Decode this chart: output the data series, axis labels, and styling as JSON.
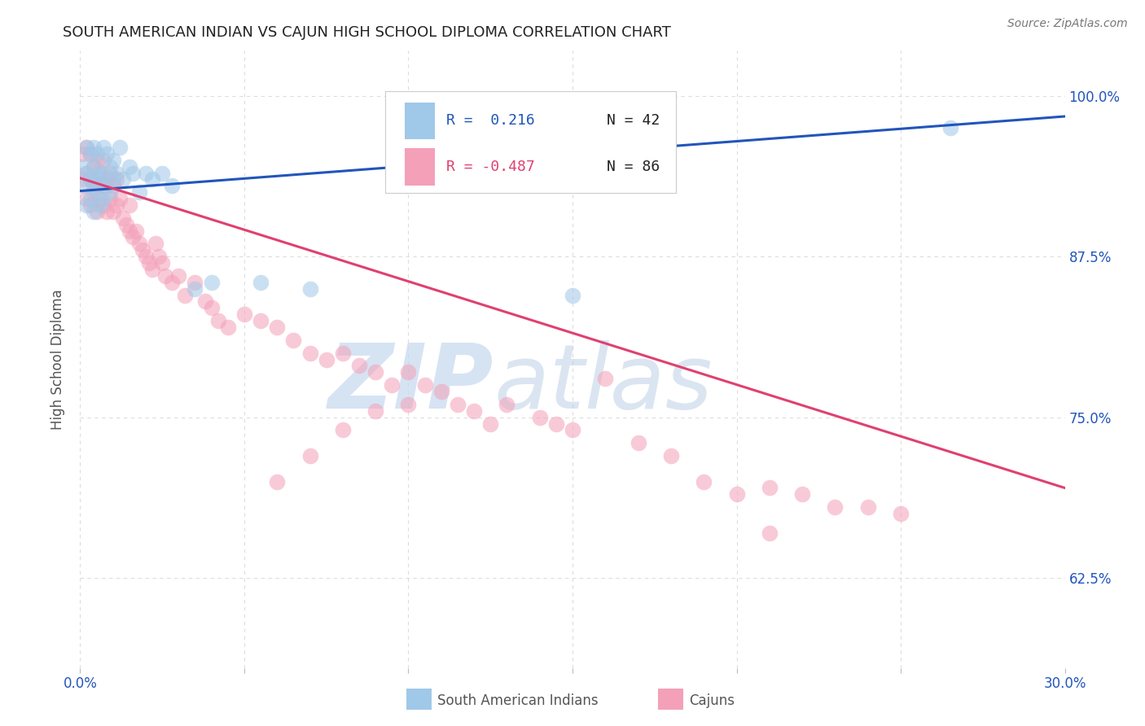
{
  "title": "SOUTH AMERICAN INDIAN VS CAJUN HIGH SCHOOL DIPLOMA CORRELATION CHART",
  "source": "Source: ZipAtlas.com",
  "ylabel": "High School Diploma",
  "ytick_labels": [
    "62.5%",
    "75.0%",
    "87.5%",
    "100.0%"
  ],
  "ytick_values": [
    0.625,
    0.75,
    0.875,
    1.0
  ],
  "xlim": [
    0.0,
    0.3
  ],
  "ylim": [
    0.555,
    1.035
  ],
  "blue_scatter_x": [
    0.001,
    0.001,
    0.002,
    0.002,
    0.002,
    0.003,
    0.003,
    0.003,
    0.004,
    0.004,
    0.004,
    0.004,
    0.005,
    0.005,
    0.005,
    0.006,
    0.006,
    0.007,
    0.007,
    0.007,
    0.008,
    0.008,
    0.009,
    0.009,
    0.01,
    0.01,
    0.011,
    0.012,
    0.013,
    0.015,
    0.016,
    0.018,
    0.02,
    0.022,
    0.025,
    0.028,
    0.035,
    0.04,
    0.055,
    0.07,
    0.15,
    0.265
  ],
  "blue_scatter_y": [
    0.93,
    0.945,
    0.915,
    0.94,
    0.96,
    0.92,
    0.935,
    0.955,
    0.91,
    0.93,
    0.945,
    0.96,
    0.925,
    0.94,
    0.955,
    0.915,
    0.935,
    0.92,
    0.94,
    0.96,
    0.93,
    0.955,
    0.925,
    0.945,
    0.935,
    0.95,
    0.94,
    0.96,
    0.935,
    0.945,
    0.94,
    0.925,
    0.94,
    0.935,
    0.94,
    0.93,
    0.85,
    0.855,
    0.855,
    0.85,
    0.845,
    0.975
  ],
  "pink_scatter_x": [
    0.001,
    0.001,
    0.002,
    0.002,
    0.002,
    0.003,
    0.003,
    0.003,
    0.004,
    0.004,
    0.005,
    0.005,
    0.005,
    0.006,
    0.006,
    0.007,
    0.007,
    0.007,
    0.008,
    0.008,
    0.009,
    0.009,
    0.01,
    0.01,
    0.011,
    0.011,
    0.012,
    0.013,
    0.014,
    0.015,
    0.015,
    0.016,
    0.017,
    0.018,
    0.019,
    0.02,
    0.021,
    0.022,
    0.023,
    0.024,
    0.025,
    0.026,
    0.028,
    0.03,
    0.032,
    0.035,
    0.038,
    0.04,
    0.042,
    0.045,
    0.05,
    0.055,
    0.06,
    0.065,
    0.07,
    0.075,
    0.08,
    0.085,
    0.09,
    0.095,
    0.1,
    0.105,
    0.11,
    0.115,
    0.12,
    0.125,
    0.13,
    0.14,
    0.145,
    0.15,
    0.16,
    0.17,
    0.18,
    0.19,
    0.2,
    0.21,
    0.22,
    0.23,
    0.24,
    0.25,
    0.06,
    0.07,
    0.08,
    0.09,
    0.1,
    0.21
  ],
  "pink_scatter_y": [
    0.935,
    0.955,
    0.92,
    0.94,
    0.96,
    0.915,
    0.935,
    0.955,
    0.925,
    0.945,
    0.91,
    0.93,
    0.95,
    0.92,
    0.94,
    0.915,
    0.93,
    0.95,
    0.91,
    0.935,
    0.92,
    0.94,
    0.91,
    0.93,
    0.915,
    0.935,
    0.92,
    0.905,
    0.9,
    0.895,
    0.915,
    0.89,
    0.895,
    0.885,
    0.88,
    0.875,
    0.87,
    0.865,
    0.885,
    0.875,
    0.87,
    0.86,
    0.855,
    0.86,
    0.845,
    0.855,
    0.84,
    0.835,
    0.825,
    0.82,
    0.83,
    0.825,
    0.82,
    0.81,
    0.8,
    0.795,
    0.8,
    0.79,
    0.785,
    0.775,
    0.785,
    0.775,
    0.77,
    0.76,
    0.755,
    0.745,
    0.76,
    0.75,
    0.745,
    0.74,
    0.78,
    0.73,
    0.72,
    0.7,
    0.69,
    0.695,
    0.69,
    0.68,
    0.68,
    0.675,
    0.7,
    0.72,
    0.74,
    0.755,
    0.76,
    0.66
  ],
  "blue_line_x": [
    0.0,
    0.3
  ],
  "blue_line_y": [
    0.926,
    0.984
  ],
  "pink_line_x": [
    0.0,
    0.3
  ],
  "pink_line_y": [
    0.936,
    0.695
  ],
  "scatter_size": 200,
  "scatter_alpha": 0.55,
  "blue_color": "#a0c8e8",
  "pink_color": "#f4a0b8",
  "blue_line_color": "#2255bb",
  "pink_line_color": "#e04070",
  "watermark_zip": "ZIP",
  "watermark_atlas": "atlas",
  "watermark_color": "#c8d8f0",
  "background_color": "#ffffff",
  "grid_color": "#dddddd",
  "legend_R1": "R =  0.216",
  "legend_N1": "N = 42",
  "legend_R2": "R = -0.487",
  "legend_N2": "N = 86",
  "legend_blue_color": "#2255bb",
  "legend_pink_color": "#e04070"
}
